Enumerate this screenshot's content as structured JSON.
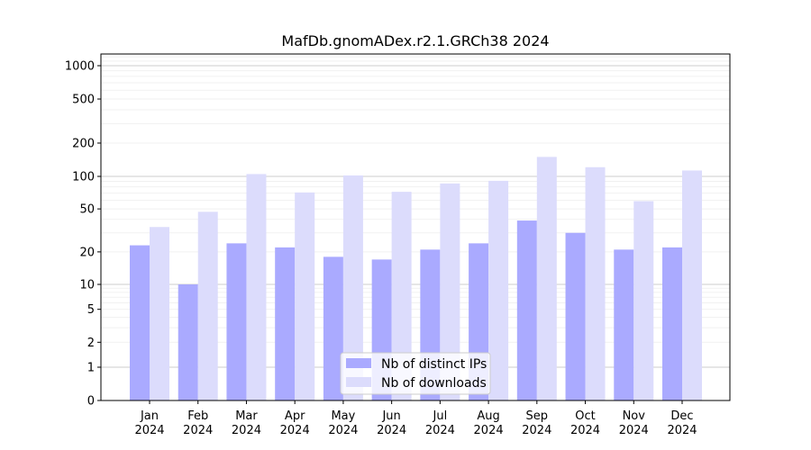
{
  "chart_data": {
    "type": "bar",
    "title": "MafDb.gnomADex.r2.1.GRCh38 2024",
    "xlabel": "",
    "ylabel": "",
    "categories": [
      {
        "month": "Jan",
        "year": "2024"
      },
      {
        "month": "Feb",
        "year": "2024"
      },
      {
        "month": "Mar",
        "year": "2024"
      },
      {
        "month": "Apr",
        "year": "2024"
      },
      {
        "month": "May",
        "year": "2024"
      },
      {
        "month": "Jun",
        "year": "2024"
      },
      {
        "month": "Jul",
        "year": "2024"
      },
      {
        "month": "Aug",
        "year": "2024"
      },
      {
        "month": "Sep",
        "year": "2024"
      },
      {
        "month": "Oct",
        "year": "2024"
      },
      {
        "month": "Nov",
        "year": "2024"
      },
      {
        "month": "Dec",
        "year": "2024"
      }
    ],
    "series": [
      {
        "name": "Nb of distinct IPs",
        "color": "#aaaaff",
        "values": [
          23,
          10,
          24,
          22,
          18,
          17,
          21,
          24,
          39,
          30,
          21,
          22
        ]
      },
      {
        "name": "Nb of downloads",
        "color": "#dcdcfc",
        "values": [
          34,
          47,
          105,
          71,
          102,
          72,
          86,
          91,
          150,
          121,
          59,
          113
        ]
      }
    ],
    "y_scale": "symlog",
    "ylim": [
      0,
      1300
    ],
    "y_ticks": [
      {
        "label": "0",
        "value": 0
      },
      {
        "label": "1",
        "value": 1
      },
      {
        "label": "2",
        "value": 2
      },
      {
        "label": "5",
        "value": 5
      },
      {
        "label": "10",
        "value": 10
      },
      {
        "label": "20",
        "value": 20
      },
      {
        "label": "50",
        "value": 50
      },
      {
        "label": "100",
        "value": 100
      },
      {
        "label": "200",
        "value": 200
      },
      {
        "label": "500",
        "value": 500
      },
      {
        "label": "1000",
        "value": 1000
      }
    ],
    "grid": true,
    "legend_position": "bottom-center"
  }
}
